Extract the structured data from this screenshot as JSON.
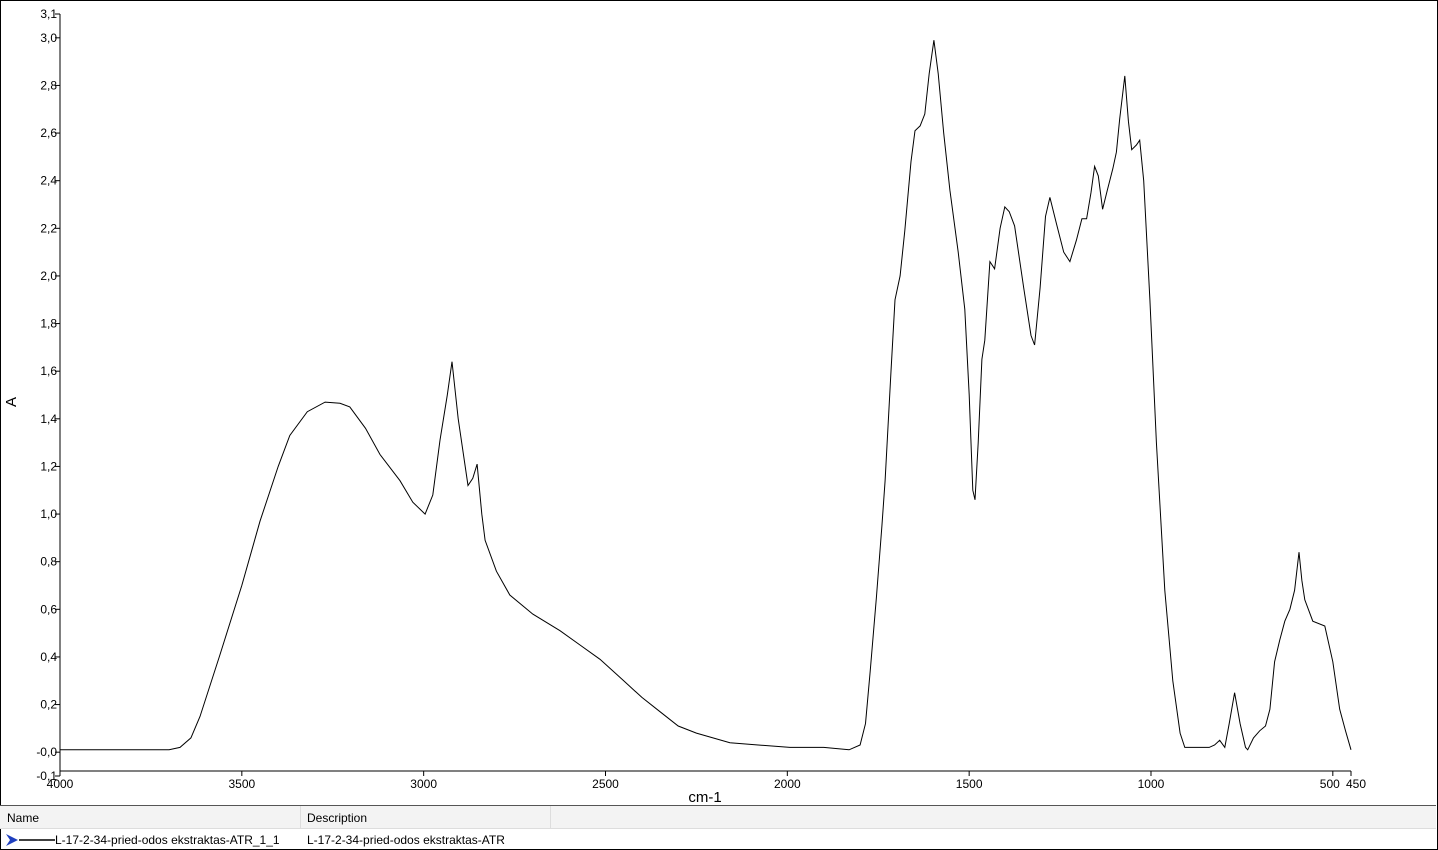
{
  "chart_data": {
    "type": "line",
    "title": "",
    "xlabel": "cm-1",
    "ylabel": "A",
    "xlim": [
      4000,
      450
    ],
    "ylim": [
      -0.1,
      3.1
    ],
    "x_reversed": true,
    "grid": false,
    "xticks": [
      "4000",
      "3500",
      "3000",
      "2500",
      "2000",
      "1500",
      "1000",
      "500",
      "450"
    ],
    "xtick_values": [
      4000,
      3500,
      3000,
      2500,
      2000,
      1500,
      1000,
      500,
      450
    ],
    "yticks": [
      "3,1",
      "3,0",
      "2,8",
      "2,6",
      "2,4",
      "2,2",
      "2,0",
      "1,8",
      "1,6",
      "1,4",
      "1,2",
      "1,0",
      "0,8",
      "0,6",
      "0,4",
      "0,2",
      "-0,0",
      "-0,1"
    ],
    "ytick_values": [
      3.1,
      3.0,
      2.8,
      2.6,
      2.4,
      2.2,
      2.0,
      1.8,
      1.6,
      1.4,
      1.2,
      1.0,
      0.8,
      0.6,
      0.4,
      0.2,
      0.0,
      -0.1
    ],
    "line_color": "#000000",
    "series": [
      {
        "name": "L-17-2-34-pried-odos ekstraktas-ATR_1_1",
        "points": [
          [
            4000,
            0.01
          ],
          [
            3850,
            0.01
          ],
          [
            3700,
            0.01
          ],
          [
            3670,
            0.02
          ],
          [
            3640,
            0.06
          ],
          [
            3615,
            0.15
          ],
          [
            3560,
            0.41
          ],
          [
            3500,
            0.7
          ],
          [
            3450,
            0.97
          ],
          [
            3400,
            1.2
          ],
          [
            3368,
            1.33
          ],
          [
            3320,
            1.43
          ],
          [
            3271,
            1.47
          ],
          [
            3230,
            1.465
          ],
          [
            3203,
            1.45
          ],
          [
            3160,
            1.36
          ],
          [
            3120,
            1.25
          ],
          [
            3065,
            1.14
          ],
          [
            3030,
            1.05
          ],
          [
            2996,
            1.0
          ],
          [
            2975,
            1.08
          ],
          [
            2955,
            1.31
          ],
          [
            2935,
            1.5
          ],
          [
            2922,
            1.64
          ],
          [
            2905,
            1.4
          ],
          [
            2878,
            1.12
          ],
          [
            2865,
            1.15
          ],
          [
            2853,
            1.21
          ],
          [
            2840,
            1.0
          ],
          [
            2831,
            0.89
          ],
          [
            2800,
            0.76
          ],
          [
            2763,
            0.66
          ],
          [
            2700,
            0.58
          ],
          [
            2625,
            0.51
          ],
          [
            2570,
            0.45
          ],
          [
            2515,
            0.39
          ],
          [
            2450,
            0.3
          ],
          [
            2400,
            0.23
          ],
          [
            2350,
            0.17
          ],
          [
            2300,
            0.11
          ],
          [
            2250,
            0.08
          ],
          [
            2158,
            0.04
          ],
          [
            2080,
            0.03
          ],
          [
            1993,
            0.02
          ],
          [
            1900,
            0.02
          ],
          [
            1830,
            0.01
          ],
          [
            1800,
            0.03
          ],
          [
            1785,
            0.12
          ],
          [
            1772,
            0.34
          ],
          [
            1755,
            0.65
          ],
          [
            1740,
            0.95
          ],
          [
            1731,
            1.14
          ],
          [
            1715,
            1.6
          ],
          [
            1704,
            1.9
          ],
          [
            1690,
            2.0
          ],
          [
            1677,
            2.19
          ],
          [
            1660,
            2.48
          ],
          [
            1649,
            2.61
          ],
          [
            1635,
            2.63
          ],
          [
            1622,
            2.68
          ],
          [
            1610,
            2.85
          ],
          [
            1597,
            2.99
          ],
          [
            1585,
            2.85
          ],
          [
            1570,
            2.6
          ],
          [
            1553,
            2.36
          ],
          [
            1530,
            2.1
          ],
          [
            1512,
            1.86
          ],
          [
            1500,
            1.5
          ],
          [
            1490,
            1.1
          ],
          [
            1484,
            1.06
          ],
          [
            1475,
            1.3
          ],
          [
            1465,
            1.65
          ],
          [
            1457,
            1.73
          ],
          [
            1443,
            2.06
          ],
          [
            1430,
            2.03
          ],
          [
            1415,
            2.2
          ],
          [
            1402,
            2.29
          ],
          [
            1390,
            2.27
          ],
          [
            1375,
            2.21
          ],
          [
            1350,
            1.95
          ],
          [
            1330,
            1.75
          ],
          [
            1320,
            1.71
          ],
          [
            1305,
            1.95
          ],
          [
            1290,
            2.25
          ],
          [
            1278,
            2.33
          ],
          [
            1260,
            2.22
          ],
          [
            1240,
            2.1
          ],
          [
            1223,
            2.06
          ],
          [
            1205,
            2.15
          ],
          [
            1190,
            2.24
          ],
          [
            1177,
            2.24
          ],
          [
            1165,
            2.35
          ],
          [
            1155,
            2.46
          ],
          [
            1145,
            2.42
          ],
          [
            1133,
            2.28
          ],
          [
            1120,
            2.36
          ],
          [
            1105,
            2.45
          ],
          [
            1095,
            2.52
          ],
          [
            1086,
            2.66
          ],
          [
            1072,
            2.84
          ],
          [
            1062,
            2.65
          ],
          [
            1053,
            2.53
          ],
          [
            1040,
            2.55
          ],
          [
            1031,
            2.57
          ],
          [
            1020,
            2.4
          ],
          [
            1003,
            1.9
          ],
          [
            985,
            1.3
          ],
          [
            962,
            0.68
          ],
          [
            940,
            0.3
          ],
          [
            920,
            0.08
          ],
          [
            907,
            0.02
          ],
          [
            870,
            0.02
          ],
          [
            840,
            0.02
          ],
          [
            825,
            0.03
          ],
          [
            811,
            0.05
          ],
          [
            797,
            0.02
          ],
          [
            785,
            0.12
          ],
          [
            770,
            0.25
          ],
          [
            755,
            0.12
          ],
          [
            740,
            0.02
          ],
          [
            734,
            0.01
          ],
          [
            718,
            0.06
          ],
          [
            701,
            0.09
          ],
          [
            685,
            0.11
          ],
          [
            673,
            0.18
          ],
          [
            660,
            0.38
          ],
          [
            646,
            0.47
          ],
          [
            632,
            0.55
          ],
          [
            618,
            0.6
          ],
          [
            605,
            0.68
          ],
          [
            593,
            0.84
          ],
          [
            585,
            0.72
          ],
          [
            577,
            0.64
          ],
          [
            555,
            0.55
          ],
          [
            522,
            0.53
          ],
          [
            500,
            0.38
          ],
          [
            481,
            0.18
          ],
          [
            465,
            0.09
          ],
          [
            450,
            0.01
          ]
        ]
      }
    ]
  },
  "legend": {
    "columns": [
      "Name",
      "Description"
    ],
    "rows": [
      {
        "name": "L-17-2-34-pried-odos ekstraktas-ATR_1_1",
        "description": "L-17-2-34-pried-odos ekstraktas-ATR",
        "marker_color": "#1f3fbf"
      }
    ]
  }
}
